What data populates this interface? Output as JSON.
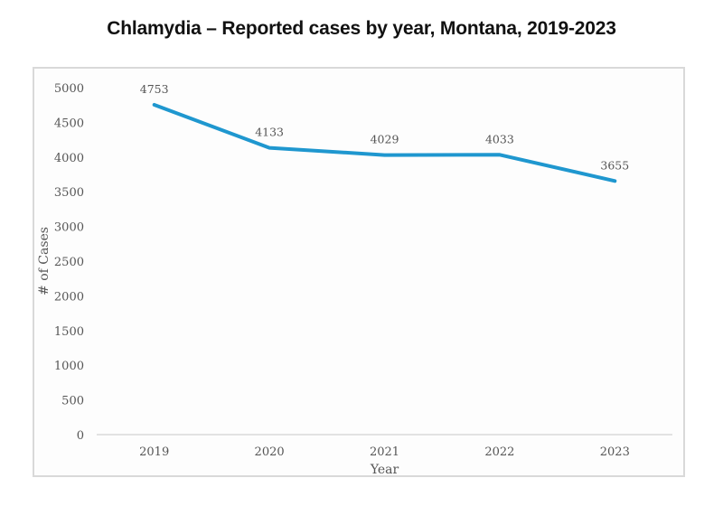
{
  "chart_data": {
    "type": "line",
    "title": "Chlamydia – Reported cases by year, Montana, 2019-2023",
    "xlabel": "Year",
    "ylabel": "# of Cases",
    "categories": [
      "2019",
      "2020",
      "2021",
      "2022",
      "2023"
    ],
    "series": [
      {
        "name": "Reported cases",
        "values": [
          4753,
          4133,
          4029,
          4033,
          3655
        ],
        "color": "#1f97cf"
      }
    ],
    "data_labels": [
      "4753",
      "4133",
      "4029",
      "4033",
      "3655"
    ],
    "ylim": [
      0,
      5000
    ],
    "yticks": [
      0,
      500,
      1000,
      1500,
      2000,
      2500,
      3000,
      3500,
      4000,
      4500,
      5000
    ],
    "ytick_labels": [
      "0",
      "500",
      "1000",
      "1500",
      "2000",
      "2500",
      "3000",
      "3500",
      "4000",
      "4500",
      "5000"
    ],
    "grid": false,
    "legend": "none",
    "axis_color": "#d9d9d9"
  }
}
